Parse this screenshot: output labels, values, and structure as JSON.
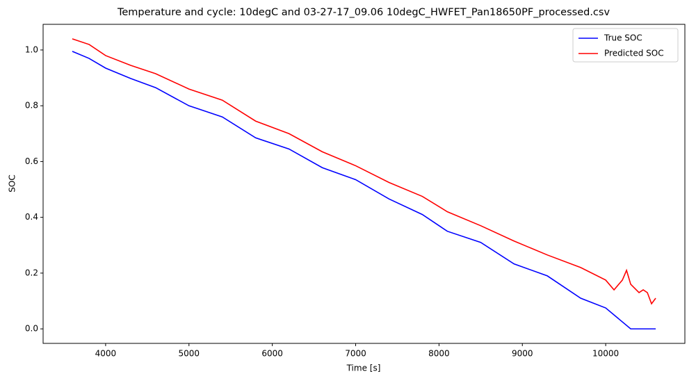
{
  "chart_data": {
    "type": "line",
    "title": "Temperature and cycle: 10degC and 03-27-17_09.06 10degC_HWFET_Pan18650PF_processed.csv",
    "x_label": "Time [s]",
    "y_label": "SOC",
    "xlim": [
      3250,
      10950
    ],
    "ylim": [
      -0.052,
      1.092
    ],
    "xticks": [
      4000,
      5000,
      6000,
      7000,
      8000,
      9000,
      10000
    ],
    "yticks": [
      {
        "value": 0,
        "label": "0.0"
      },
      0.2,
      0.4,
      0.6,
      0.8,
      {
        "value": 1,
        "label": "1.0"
      }
    ],
    "legend": "upper right",
    "grid": false,
    "series": [
      {
        "name": "True SOC",
        "color": "#0000ff",
        "x": [
          3600,
          3800,
          4000,
          4300,
          4600,
          5000,
          5100,
          5400,
          5800,
          6200,
          6600,
          7000,
          7400,
          7800,
          8100,
          8500,
          8900,
          9300,
          9700,
          10000,
          10300,
          10600
        ],
        "values": [
          0.995,
          0.97,
          0.935,
          0.898,
          0.865,
          0.8,
          0.79,
          0.76,
          0.685,
          0.645,
          0.578,
          0.535,
          0.466,
          0.41,
          0.35,
          0.31,
          0.233,
          0.19,
          0.11,
          0.075,
          0.0,
          0.0
        ]
      },
      {
        "name": "Predicted SOC",
        "color": "#ff0000",
        "x": [
          3600,
          3800,
          4000,
          4300,
          4600,
          5000,
          5400,
          5800,
          6200,
          6600,
          7000,
          7400,
          7800,
          8100,
          8500,
          8900,
          9300,
          9700,
          10000,
          10100,
          10200,
          10250,
          10300,
          10400,
          10450,
          10500,
          10550,
          10600
        ],
        "values": [
          1.04,
          1.02,
          0.98,
          0.945,
          0.915,
          0.86,
          0.82,
          0.745,
          0.7,
          0.635,
          0.585,
          0.525,
          0.475,
          0.42,
          0.37,
          0.315,
          0.265,
          0.22,
          0.175,
          0.14,
          0.175,
          0.21,
          0.16,
          0.13,
          0.14,
          0.13,
          0.09,
          0.11
        ]
      }
    ]
  }
}
